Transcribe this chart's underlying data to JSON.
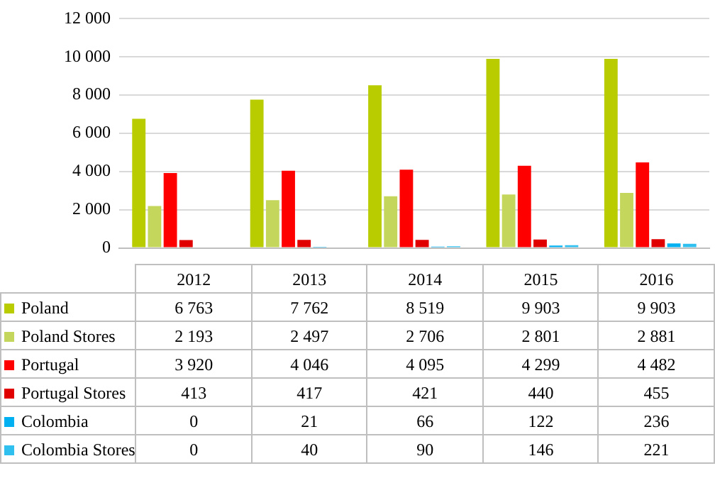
{
  "chart_data": {
    "type": "bar",
    "categories": [
      "2012",
      "2013",
      "2014",
      "2015",
      "2016"
    ],
    "series": [
      {
        "name": "Poland",
        "color": "#b8cc00",
        "values": [
          6763,
          7762,
          8519,
          9903,
          9903
        ],
        "value_labels": [
          "6 763",
          "7 762",
          "8 519",
          "9 903",
          "9 903"
        ]
      },
      {
        "name": "Poland Stores",
        "color": "#c5d65c",
        "values": [
          2193,
          2497,
          2706,
          2801,
          2881
        ],
        "value_labels": [
          "2 193",
          "2 497",
          "2 706",
          "2 801",
          "2 881"
        ]
      },
      {
        "name": "Portugal",
        "color": "#ff0000",
        "values": [
          3920,
          4046,
          4095,
          4299,
          4482
        ],
        "value_labels": [
          "3 920",
          "4 046",
          "4 095",
          "4 299",
          "4 482"
        ]
      },
      {
        "name": "Portugal Stores",
        "color": "#e00000",
        "values": [
          413,
          417,
          421,
          440,
          455
        ],
        "value_labels": [
          "413",
          "417",
          "421",
          "440",
          "455"
        ]
      },
      {
        "name": "Colombia",
        "color": "#00b0f0",
        "values": [
          0,
          21,
          66,
          122,
          236
        ],
        "value_labels": [
          "0",
          "21",
          "66",
          "122",
          "236"
        ]
      },
      {
        "name": "Colombia Stores",
        "color": "#30c0f0",
        "values": [
          0,
          40,
          90,
          146,
          221
        ],
        "value_labels": [
          "0",
          "40",
          "90",
          "146",
          "221"
        ]
      }
    ],
    "ylim": [
      0,
      12000
    ],
    "yticks": [
      {
        "value": 0,
        "label": "0"
      },
      {
        "value": 2000,
        "label": "2 000"
      },
      {
        "value": 4000,
        "label": "4 000"
      },
      {
        "value": 6000,
        "label": "6 000"
      },
      {
        "value": 8000,
        "label": "8 000"
      },
      {
        "value": 10000,
        "label": "10 000"
      },
      {
        "value": 12000,
        "label": "12 000"
      }
    ],
    "grid": "y",
    "legend": "bottom"
  }
}
